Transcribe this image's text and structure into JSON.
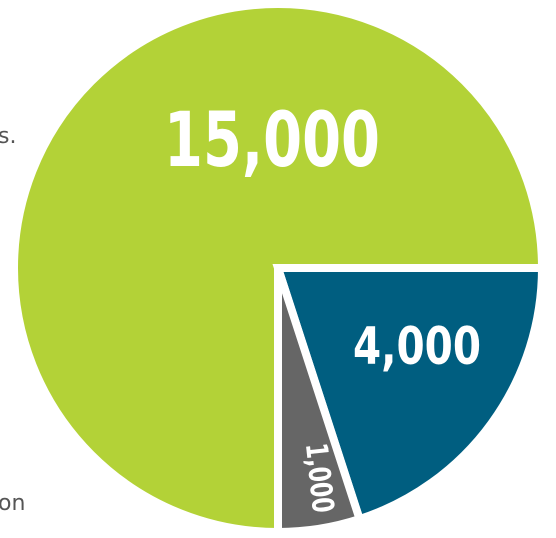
{
  "chart_data": {
    "type": "pie",
    "title": "",
    "labels": [
      "",
      "",
      ""
    ],
    "values": [
      15000,
      4000,
      1000
    ],
    "value_labels": [
      "15,000",
      "4,000",
      "1,000"
    ],
    "colors": [
      "#b3d237",
      "#005e80",
      "#666666"
    ],
    "separator_color": "#ffffff",
    "legend": "none"
  },
  "page_fragments": {
    "left_edge_upper": "s.",
    "left_edge_lower": "on"
  }
}
